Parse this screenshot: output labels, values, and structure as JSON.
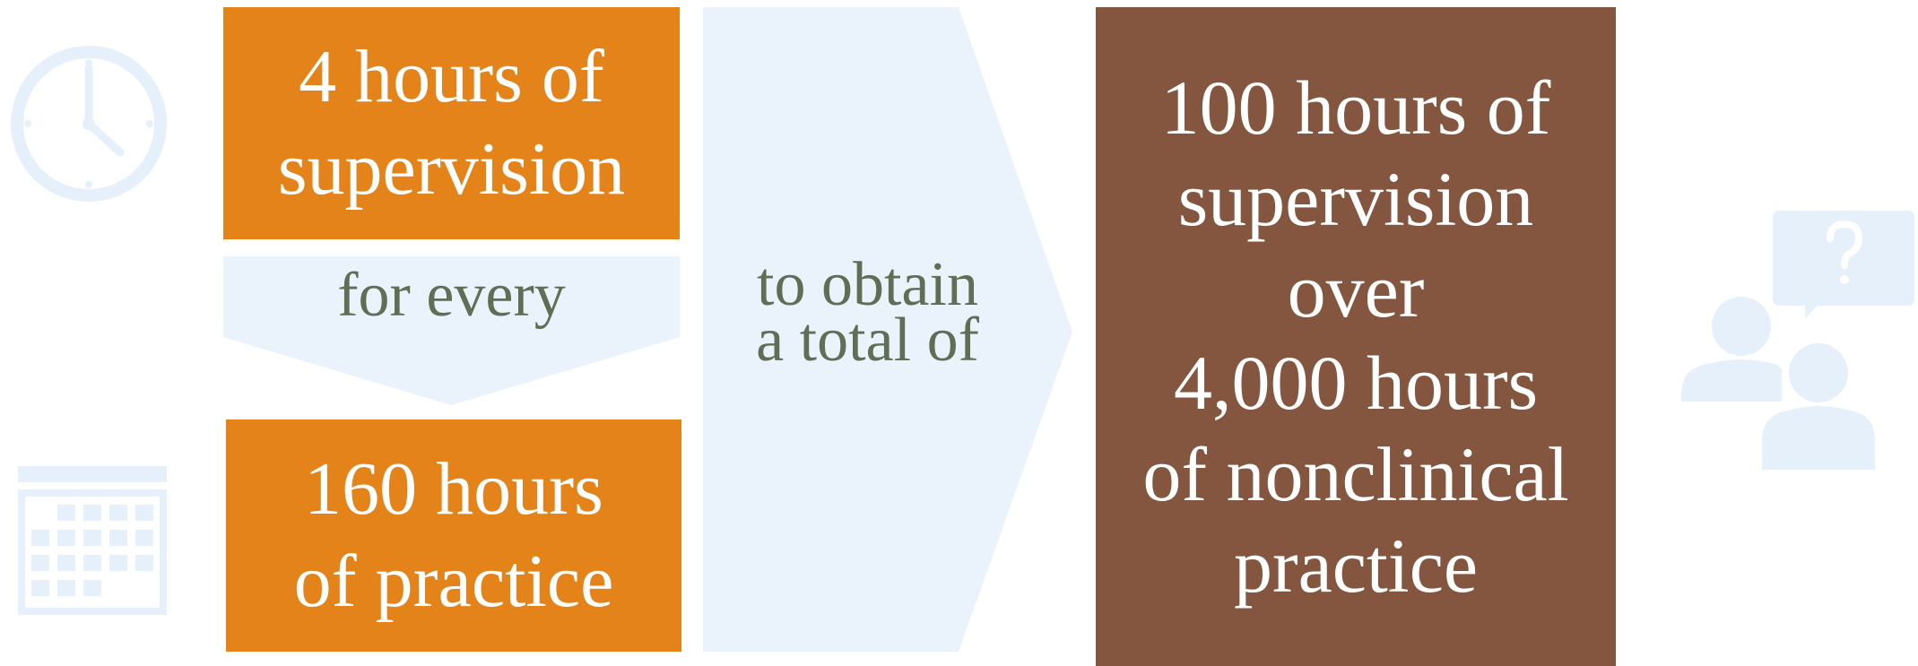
{
  "colors": {
    "orange": "#E3831A",
    "brown": "#84553F",
    "light_blue": "#EAF2FB",
    "icon_blue": "#E6F0FA",
    "connector_text": "#5F6F55",
    "box_text": "#FFFFFF"
  },
  "icons": {
    "left_top": "clock-icon",
    "left_bottom": "calendar-icon",
    "right": "people-question-icon"
  },
  "requirement": {
    "supervision_lines": [
      "4 hours of",
      "supervision"
    ],
    "connector": "for every",
    "practice_lines": [
      "160 hours",
      "of practice"
    ]
  },
  "goal": {
    "connector_lines": [
      "to obtain",
      "a total of"
    ],
    "total_lines": [
      "100 hours of",
      "supervision",
      "over",
      "4,000 hours",
      "of nonclinical",
      "practice"
    ]
  }
}
